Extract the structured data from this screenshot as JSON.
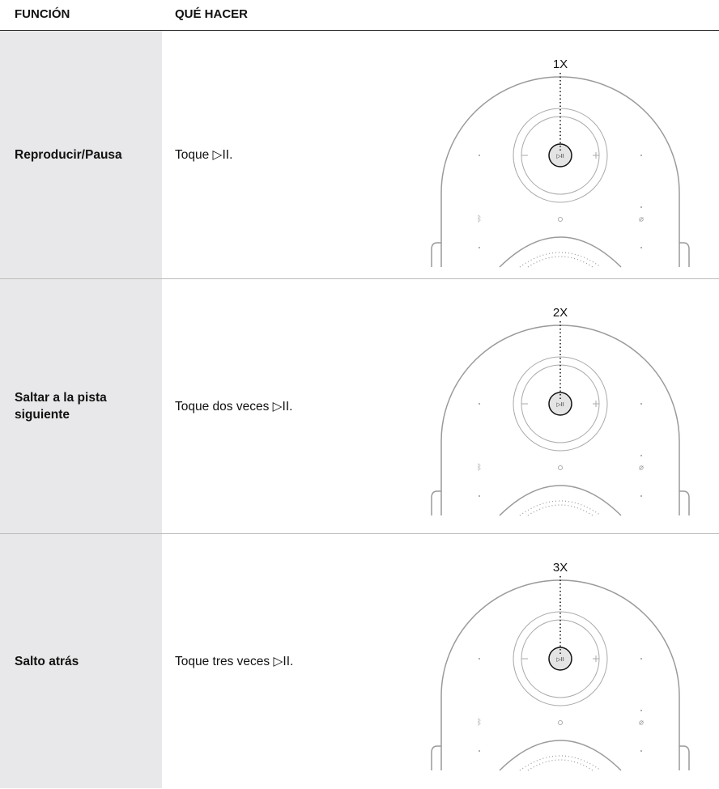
{
  "header": {
    "columns": [
      "FUNCIÓN",
      "QUÉ HACER"
    ]
  },
  "rows": [
    {
      "function": "Reproducir/Pausa",
      "action": "Toque ▷II.",
      "label": "1X"
    },
    {
      "function": "Saltar a la pista siguiente",
      "action": "Toque dos veces ▷II.",
      "label": "2X"
    },
    {
      "function": "Salto atrás",
      "action": "Toque tres veces ▷II.",
      "label": "3X"
    }
  ]
}
